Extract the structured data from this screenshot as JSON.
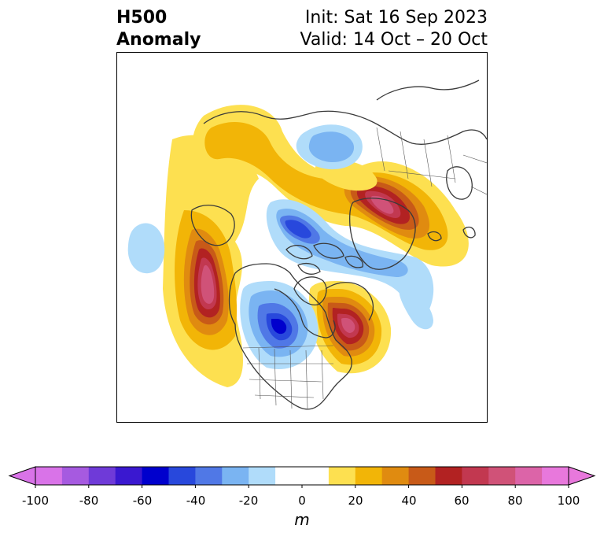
{
  "header": {
    "title_line1": "H500",
    "title_line2": "Anomaly",
    "init_text": "Init: Sat 16 Sep 2023",
    "valid_text": "Valid: 14 Oct – 20 Oct"
  },
  "colorbar": {
    "unit": "m",
    "ticks": [
      "-100",
      "-80",
      "-60",
      "-40",
      "-20",
      "0",
      "20",
      "40",
      "60",
      "80",
      "100"
    ],
    "bins": [
      {
        "from": -100,
        "to": -90,
        "color": "#d973e8"
      },
      {
        "from": -90,
        "to": -80,
        "color": "#a65ae0"
      },
      {
        "from": -80,
        "to": -70,
        "color": "#6f3ad8"
      },
      {
        "from": -70,
        "to": -60,
        "color": "#3a18d0"
      },
      {
        "from": -60,
        "to": -50,
        "color": "#0000cd"
      },
      {
        "from": -50,
        "to": -40,
        "color": "#2848dc"
      },
      {
        "from": -40,
        "to": -30,
        "color": "#5078e6"
      },
      {
        "from": -30,
        "to": -20,
        "color": "#7ab4f2"
      },
      {
        "from": -20,
        "to": -10,
        "color": "#b0dcfa"
      },
      {
        "from": -10,
        "to": 10,
        "color": "#ffffff"
      },
      {
        "from": 10,
        "to": 20,
        "color": "#fde050"
      },
      {
        "from": 20,
        "to": 30,
        "color": "#f2b507"
      },
      {
        "from": 30,
        "to": 40,
        "color": "#e08b10"
      },
      {
        "from": 40,
        "to": 50,
        "color": "#c85a18"
      },
      {
        "from": 50,
        "to": 60,
        "color": "#b22222"
      },
      {
        "from": 60,
        "to": 70,
        "color": "#c23850"
      },
      {
        "from": 70,
        "to": 80,
        "color": "#d05278"
      },
      {
        "from": 80,
        "to": 90,
        "color": "#dc64a8"
      },
      {
        "from": 90,
        "to": 100,
        "color": "#e878dc"
      }
    ],
    "over_color": "#e878dc",
    "under_color": "#d973e8"
  },
  "map": {
    "anomaly_centers": [
      {
        "region": "western North America / NE Pacific",
        "value": 80
      },
      {
        "region": "eastern Canada / Labrador",
        "value": 80
      },
      {
        "region": "central Canada / northern Plains",
        "value": -60
      },
      {
        "region": "western Siberia",
        "value": 70
      },
      {
        "region": "Arctic Ocean north of Siberia",
        "value": -40
      },
      {
        "region": "Canadian Arctic Archipelago",
        "value": -50
      },
      {
        "region": "Greenland Sea / North Atlantic",
        "value": -30
      },
      {
        "region": "eastern Siberia / Alaska",
        "value": 30
      },
      {
        "region": "central North Pacific",
        "value": -20
      }
    ]
  }
}
